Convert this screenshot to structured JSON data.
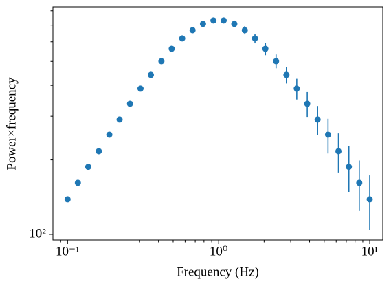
{
  "chart_data": {
    "type": "scatter",
    "xlabel": "Frequency (Hz)",
    "ylabel": "Power×frequency",
    "xscale": "log",
    "yscale": "log",
    "x": [
      0.1,
      0.117,
      0.137,
      0.161,
      0.189,
      0.221,
      0.259,
      0.304,
      0.356,
      0.418,
      0.489,
      0.574,
      0.672,
      0.788,
      0.924,
      1.08,
      1.27,
      1.49,
      1.74,
      2.04,
      2.4,
      2.81,
      3.29,
      3.86,
      4.52,
      5.3,
      6.21,
      7.28,
      8.53,
      10
    ],
    "series": [
      {
        "color": "#1f77b4",
        "values": [
          138.6,
          161.6,
          187.5,
          216.8,
          252.7,
          291,
          337,
          388,
          441,
          501,
          562,
          619,
          668,
          708,
          731,
          731,
          708,
          668,
          619,
          562,
          501,
          441,
          388,
          337,
          291,
          252.7,
          216.8,
          187.5,
          161.6,
          138.6
        ],
        "errors": [
          0.3,
          0.4,
          0.5,
          0.7,
          1,
          1.3,
          1.7,
          2.5,
          3.4,
          4.5,
          6.1,
          7.9,
          10.3,
          13.1,
          15.9,
          18.7,
          22.7,
          25.7,
          27.7,
          32.4,
          32.1,
          33.9,
          37.2,
          38.8,
          39.1,
          40.4,
          38.9,
          39.6,
          37.2,
          34.6
        ]
      }
    ],
    "xlim": [
      0.08,
      12.2
    ],
    "ylim": [
      95,
      830
    ],
    "xticks": [
      {
        "value": 0.1,
        "label": "10⁻¹"
      },
      {
        "value": 1,
        "label": "10⁰"
      },
      {
        "value": 10,
        "label": "10¹"
      }
    ],
    "yticks": [
      {
        "value": 100,
        "label": "10²"
      }
    ],
    "xminorticks": [
      0.09,
      0.2,
      0.3,
      0.4,
      0.5,
      0.6,
      0.7,
      0.8,
      0.9,
      2,
      3,
      4,
      5,
      6,
      7,
      8,
      9
    ],
    "yminorticks": [
      200,
      300,
      400,
      500,
      600,
      700,
      800
    ]
  }
}
